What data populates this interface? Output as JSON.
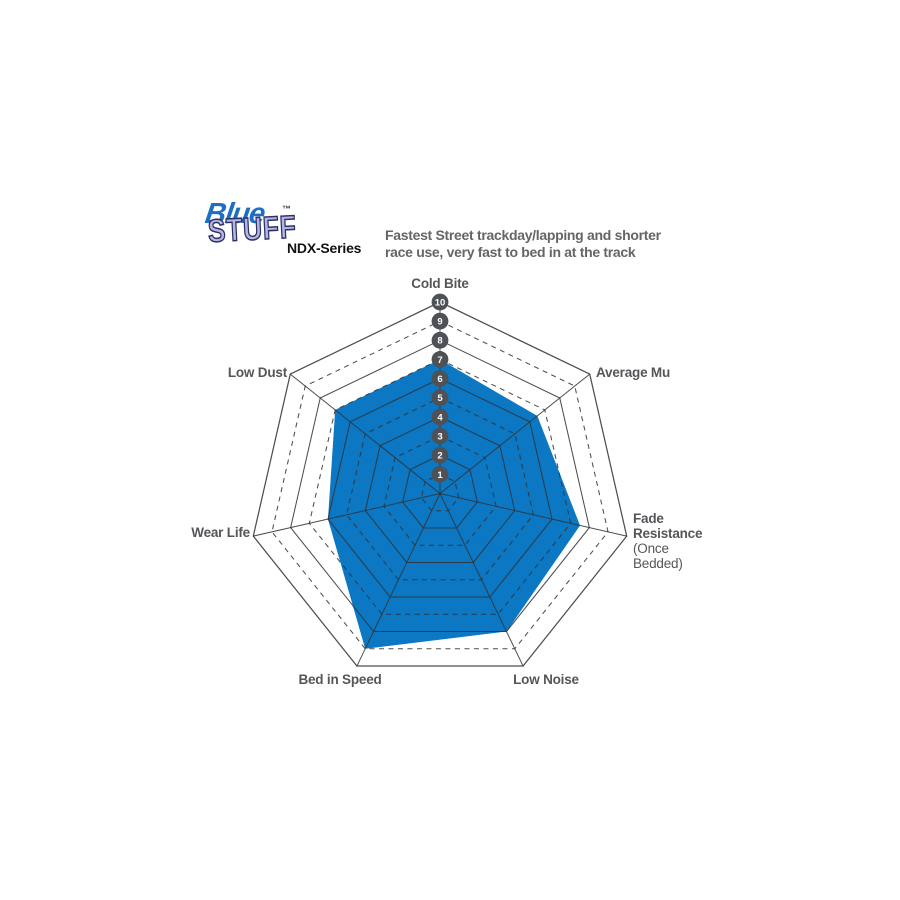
{
  "header": {
    "logo": {
      "word_top": "Blue",
      "trademark": "™",
      "word_bottom": "STUFF",
      "series_label": "NDX-Series"
    },
    "description": "Fastest Street trackday/lapping and shorter race use, very fast to bed in at the track"
  },
  "colors": {
    "data_fill": "#0C77C2",
    "grid_line": "#2E3236",
    "badge_fill": "#4E5156",
    "badge_text": "#FFFFFF",
    "axis_label_text": "#54565A",
    "description_text": "#636569",
    "logo_blue": "#1E6FC4",
    "logo_lavender": "#B3B8E3",
    "logo_outline": "#2F2F66"
  },
  "chart_data": {
    "type": "radar",
    "axes_order": "clockwise from top",
    "axes": [
      {
        "id": "cold-bite",
        "label": "Cold Bite",
        "value": 7
      },
      {
        "id": "average-mu",
        "label": "Average Mu",
        "value": 6.5
      },
      {
        "id": "fade-resistance",
        "label": "Fade Resistance",
        "sublabel": "(Once Bedded)",
        "value": 7.5
      },
      {
        "id": "low-noise",
        "label": "Low Noise",
        "value": 8
      },
      {
        "id": "bed-in-speed",
        "label": "Bed in Speed",
        "value": 9
      },
      {
        "id": "wear-life",
        "label": "Wear Life",
        "value": 6
      },
      {
        "id": "low-dust",
        "label": "Low Dust",
        "value": 7
      }
    ],
    "scale": {
      "min": 0,
      "max": 10,
      "ticks": [
        1,
        2,
        3,
        4,
        5,
        6,
        7,
        8,
        9,
        10
      ],
      "ring_style": "even rings solid, odd rings dashed",
      "tick_badges": "numbered circles along top spoke"
    },
    "grid": "heptagonal web with 7 spokes",
    "legend_position": "none"
  }
}
